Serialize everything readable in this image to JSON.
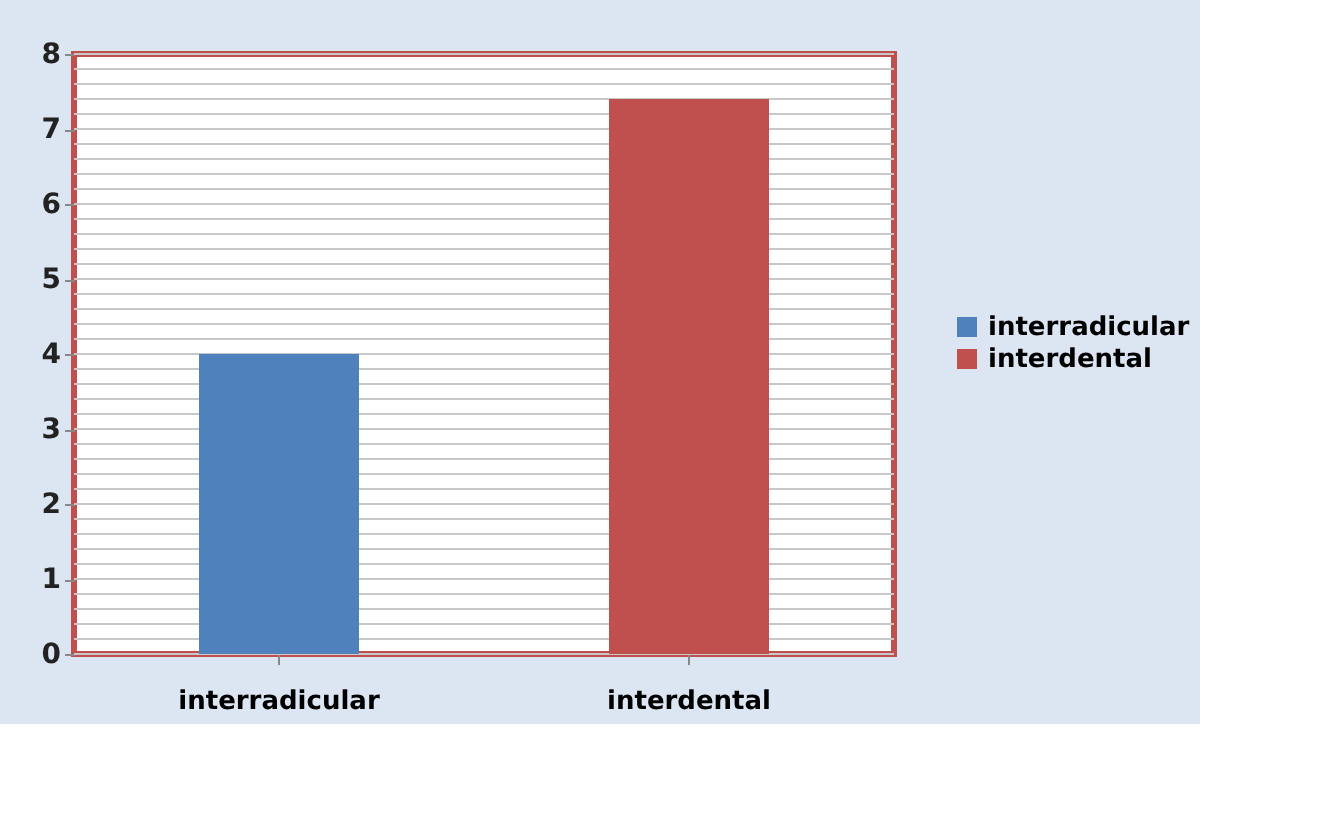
{
  "chart_data": {
    "type": "bar",
    "categories": [
      "interradicular",
      "interdental"
    ],
    "series": [
      {
        "name": "interradicular",
        "color": "#4f81bd",
        "values": [
          4,
          null
        ]
      },
      {
        "name": "interdental",
        "color": "#c0504d",
        "values": [
          null,
          7.4
        ]
      }
    ],
    "ylim": [
      0,
      8
    ],
    "yticks": [
      0,
      {
        "value": 0.2,
        "label": null
      },
      {
        "value": 0.4,
        "label": null
      },
      {
        "value": 0.6,
        "label": null
      },
      {
        "value": 0.8,
        "label": null
      },
      1,
      {
        "value": 1.2,
        "label": null
      },
      {
        "value": 1.4,
        "label": null
      },
      {
        "value": 1.6,
        "label": null
      },
      {
        "value": 1.8,
        "label": null
      },
      2,
      {
        "value": 2.2,
        "label": null
      },
      {
        "value": 2.4,
        "label": null
      },
      {
        "value": 2.6,
        "label": null
      },
      {
        "value": 2.8,
        "label": null
      },
      3,
      {
        "value": 3.2,
        "label": null
      },
      {
        "value": 3.4,
        "label": null
      },
      {
        "value": 3.6,
        "label": null
      },
      {
        "value": 3.8,
        "label": null
      },
      4,
      {
        "value": 4.2,
        "label": null
      },
      {
        "value": 4.4,
        "label": null
      },
      {
        "value": 4.6,
        "label": null
      },
      {
        "value": 4.8,
        "label": null
      },
      5,
      {
        "value": 5.2,
        "label": null
      },
      {
        "value": 5.4,
        "label": null
      },
      {
        "value": 5.6,
        "label": null
      },
      {
        "value": 5.8,
        "label": null
      },
      6,
      {
        "value": 6.2,
        "label": null
      },
      {
        "value": 6.4,
        "label": null
      },
      {
        "value": 6.6,
        "label": null
      },
      {
        "value": 6.8,
        "label": null
      },
      7,
      {
        "value": 7.2,
        "label": null
      },
      {
        "value": 7.4,
        "label": null
      },
      {
        "value": 7.6,
        "label": null
      },
      {
        "value": 7.8,
        "label": null
      },
      8
    ],
    "grid": "y",
    "legend": "right"
  }
}
